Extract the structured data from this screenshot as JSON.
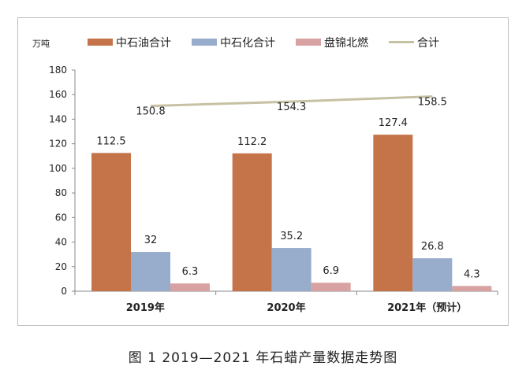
{
  "caption": "图 1  2019—2021 年石蜡产量数据走势图",
  "chart_data": {
    "type": "bar",
    "unit_label": "万吨",
    "categories": [
      "2019年",
      "2020年",
      "2021年（预计）"
    ],
    "ylim": [
      0,
      180
    ],
    "yticks": [
      0,
      20,
      40,
      60,
      80,
      100,
      120,
      140,
      160,
      180
    ],
    "grid": false,
    "legend_position": "top",
    "series": [
      {
        "name": "中石油合计",
        "kind": "bar",
        "color": "#c5744a",
        "values": [
          112.5,
          112.2,
          127.4
        ]
      },
      {
        "name": "中石化合计",
        "kind": "bar",
        "color": "#98accc",
        "values": [
          32,
          35.2,
          26.8
        ]
      },
      {
        "name": "盘锦北燃",
        "kind": "bar",
        "color": "#d9a2a2",
        "values": [
          6.3,
          6.9,
          4.3
        ]
      },
      {
        "name": "合计",
        "kind": "line",
        "color": "#c6c1a3",
        "values": [
          150.8,
          154.3,
          158.5
        ]
      }
    ],
    "value_labels": {
      "中石油合计": [
        "112.5",
        "112.2",
        "127.4"
      ],
      "中石化合计": [
        "32",
        "35.2",
        "26.8"
      ],
      "盘锦北燃": [
        "6.3",
        "6.9",
        "4.3"
      ],
      "合计": [
        "150.8",
        "154.3",
        "158.5"
      ]
    }
  }
}
